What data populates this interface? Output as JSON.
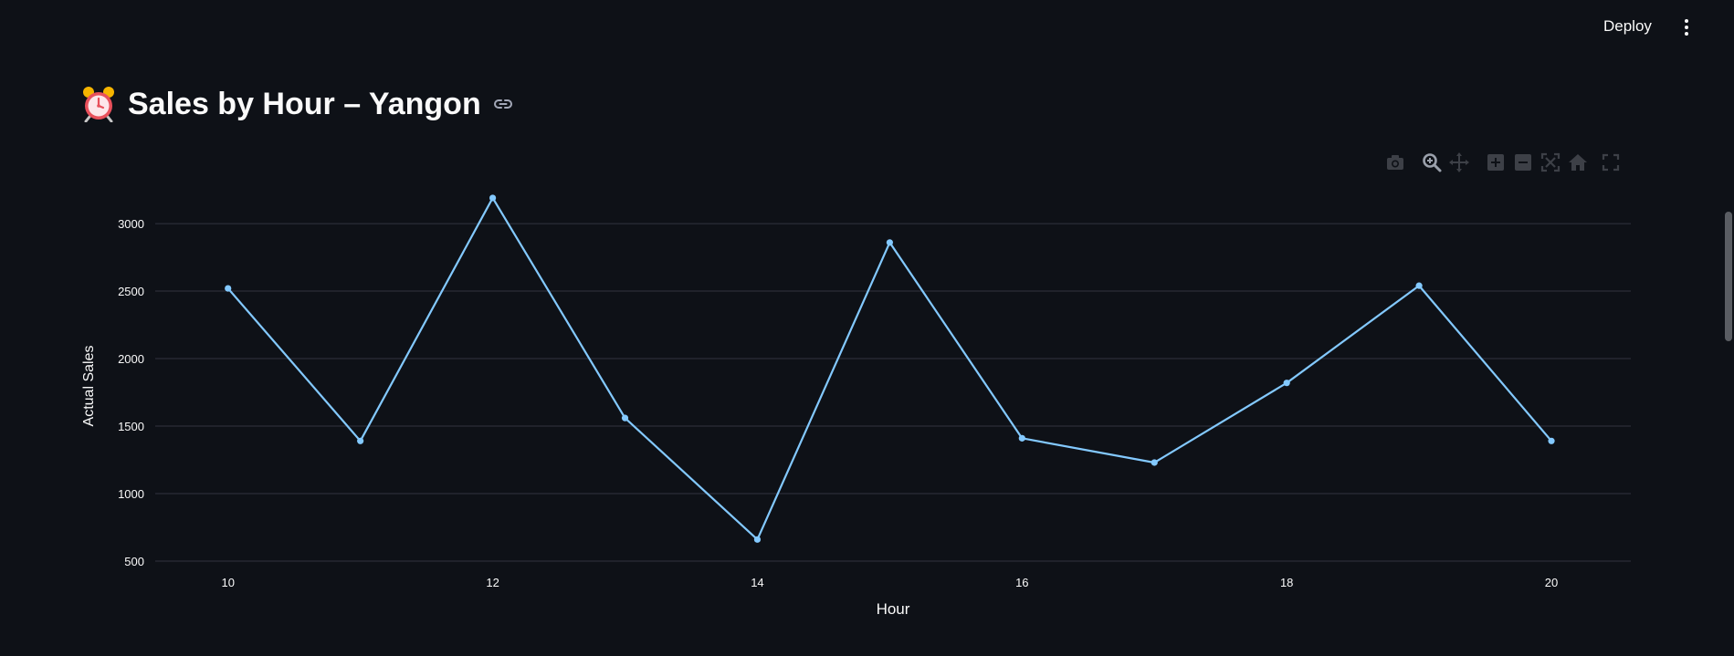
{
  "header": {
    "deploy_label": "Deploy"
  },
  "page": {
    "title": "Sales by Hour – Yangon"
  },
  "icons": {
    "title_emoji": "alarm-clock-icon",
    "anchor": "link-icon",
    "menu": "vertical-ellipsis-icon",
    "modebar": [
      "camera-icon",
      "zoom-icon",
      "pan-icon",
      "zoom-in-icon",
      "zoom-out-icon",
      "autoscale-icon",
      "reset-axes-icon",
      "fullscreen-icon"
    ]
  },
  "colors": {
    "background": "#0e1117",
    "line": "#83c9ff",
    "grid": "#31333f",
    "text": "#fafafa"
  },
  "chart_data": {
    "type": "line",
    "title": "",
    "xlabel": "Hour",
    "ylabel": "Actual Sales",
    "x": [
      10,
      11,
      12,
      13,
      14,
      15,
      16,
      17,
      18,
      19,
      20
    ],
    "series": [
      {
        "values": [
          2520,
          1390,
          3190,
          1560,
          660,
          2860,
          1410,
          1230,
          1820,
          2540,
          1390
        ]
      }
    ],
    "xticks": [
      "10",
      "12",
      "14",
      "16",
      "18",
      "20"
    ],
    "yticks": [
      "500",
      "1000",
      "1500",
      "2000",
      "2500",
      "3000"
    ],
    "xlim": [
      9.45,
      20.6
    ],
    "ylim": [
      500,
      3210
    ],
    "grid": true,
    "legend": "none"
  }
}
